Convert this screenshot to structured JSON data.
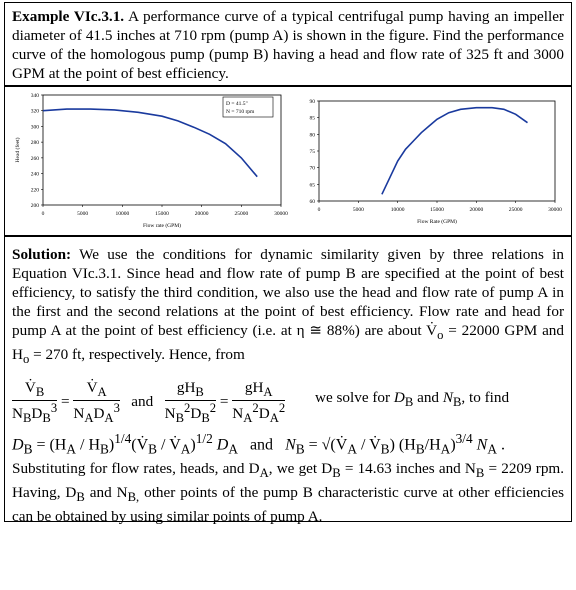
{
  "example": {
    "label": "Example VIc.3.1.",
    "text": "A performance curve of a typical centrifugal pump having an impeller diameter of 41.5 inches at 710 rpm (pump A) is shown in the figure. Find the performance curve of the homologous pump (pump B) having a head and flow rate of 325 ft and 3000 GPM at the point of best efficiency."
  },
  "chart_data": [
    {
      "type": "line",
      "xlabel": "Flow rate (GPM)",
      "ylabel": "Head (feet)",
      "xlim": [
        0,
        30000
      ],
      "ylim": [
        200,
        340
      ],
      "xticks": [
        "0",
        "5000",
        "10000",
        "15000",
        "20000",
        "25000",
        "30000"
      ],
      "yticks": [
        "200",
        "220",
        "240",
        "260",
        "280",
        "300",
        "320",
        "340"
      ],
      "legend": [
        "D = 41.5\"",
        "N = 710 rpm"
      ],
      "legend_position": "top-right",
      "series": [
        {
          "x": [
            0,
            3000,
            6000,
            9000,
            12000,
            15000,
            17000,
            19000,
            21000,
            23000,
            25000,
            27000
          ],
          "values": [
            320,
            322,
            322,
            321,
            318,
            313,
            307,
            299,
            290,
            278,
            260,
            236
          ]
        }
      ],
      "color": "#1a3a9e"
    },
    {
      "type": "line",
      "xlabel": "Flow Rate (GPM)",
      "ylabel": "Pump efficiency (%)",
      "xlim": [
        0,
        30000
      ],
      "ylim": [
        60,
        90
      ],
      "xticks": [
        "0",
        "5000",
        "10000",
        "15000",
        "20000",
        "25000",
        "30000"
      ],
      "yticks": [
        "60",
        "65",
        "70",
        "75",
        "80",
        "85",
        "90"
      ],
      "series": [
        {
          "x": [
            8000,
            9000,
            10000,
            11000,
            12000,
            13000,
            14000,
            15000,
            16500,
            18000,
            20000,
            22000,
            23500,
            25000,
            26500
          ],
          "values": [
            62,
            67,
            72,
            75.5,
            78,
            80.5,
            82.5,
            84.5,
            86.5,
            87.5,
            88,
            88,
            87.5,
            86,
            83.5
          ]
        }
      ],
      "color": "#1a3a9e"
    }
  ],
  "solution": {
    "label": "Solution:",
    "text": "We use the conditions for dynamic similarity given by three relations in Equation VIc.3.1. Since head and flow rate of pump B are specified at the point of best efficiency, to satisfy the third condition, we also use the head and flow rate of pump A in the first and the second relations at the point of best efficiency. Flow rate and head for pump A at the point of best efficiency (i.e. at",
    "eta_text": "η ≅ 88%) are about",
    "flow_text": "= 22000 GPM and",
    "head_text": "= 270 ft, respectively. Hence, from",
    "and_word": "and",
    "solve_text": "we solve for",
    "and_word2": "and",
    "to_find": ", to find",
    "closing": "Substituting for flow rates, heads, and D",
    "closing2": ", we get D",
    "closing3": "= 14.63 inches and N",
    "closing4": "= 2209 rpm. Having, D",
    "closing5": "and N",
    "closing6": "other points of the pump B characteristic curve at other efficiencies can be obtained by using similar points of pump A."
  }
}
